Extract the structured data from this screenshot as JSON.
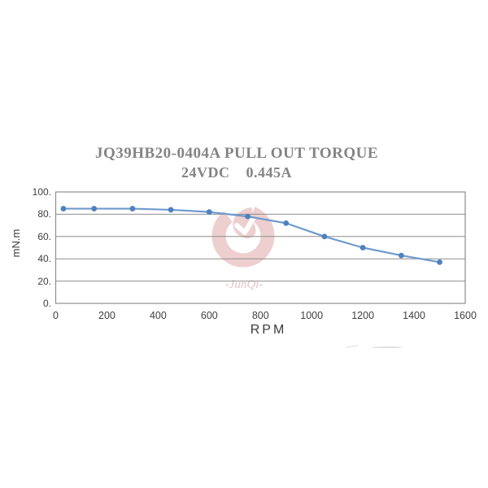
{
  "page": {
    "background": "#ffffff"
  },
  "chart_data": {
    "type": "line",
    "title_line1": "JQ39HB20-0404A PULL OUT TORQUE",
    "title_line2": "24VDC    0.445A",
    "xlabel": "RPM",
    "ylabel": "mN.m",
    "series": [
      {
        "name": "pull-out torque",
        "x": [
          30,
          150,
          300,
          450,
          600,
          750,
          900,
          1050,
          1200,
          1350,
          1500
        ],
        "values": [
          85,
          85,
          85,
          84,
          82,
          78,
          72,
          60,
          50,
          43,
          37
        ]
      }
    ],
    "xlim": [
      0,
      1600
    ],
    "ylim": [
      0,
      100
    ],
    "x_ticks": [
      0,
      200,
      400,
      600,
      800,
      1000,
      1200,
      1400,
      1600
    ],
    "y_ticks": [
      0,
      20,
      40,
      60,
      80,
      100
    ],
    "x_tick_labels": [
      "0",
      "200",
      "400",
      "600",
      "800",
      "1000",
      "1200",
      "1400",
      "1600"
    ],
    "y_tick_labels": [
      "0.",
      "20.",
      "40.",
      "60.",
      "80.",
      "100."
    ],
    "grid": "horizontal",
    "legend": "none",
    "line_color": "#6f9ace",
    "marker_color": "#4f81bd",
    "grid_color": "#8e8e8e",
    "border_color": "#8e8e8e",
    "marker": "circle"
  },
  "watermark": {
    "text": "-JunQi-",
    "color": "#d98f8f"
  },
  "colors": {
    "title": "#848484",
    "axis_text": "#3f3f3f"
  }
}
